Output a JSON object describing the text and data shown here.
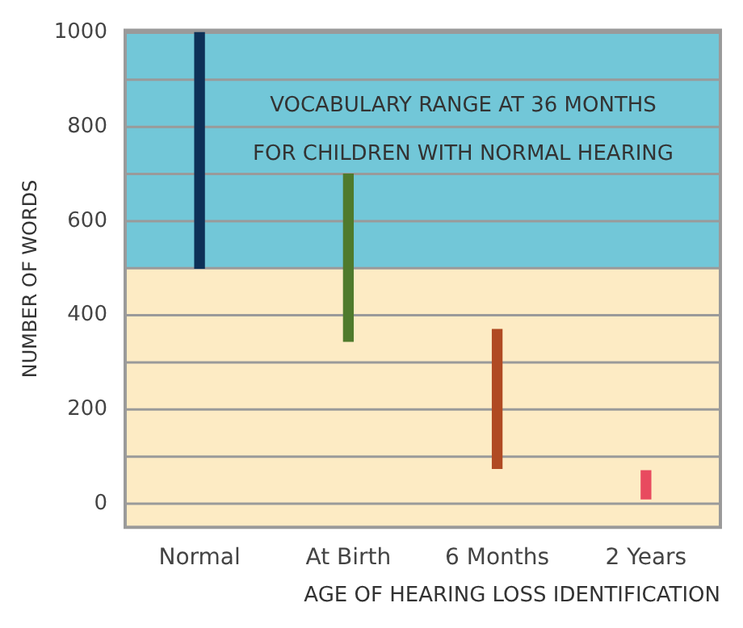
{
  "chart_data": {
    "type": "bar",
    "categories": [
      "Normal",
      "At Birth",
      "6 Months",
      "2 Years"
    ],
    "base": [
      500,
      345,
      75,
      10
    ],
    "values": [
      500,
      355,
      295,
      60
    ],
    "colors": [
      "#0d3057",
      "#4f7a2c",
      "#b04a22",
      "#e84a5f"
    ],
    "ylabel": "NUMBER OF WORDS",
    "xlabel": "AGE OF HEARING LOSS IDENTIFICATION",
    "annotations": [
      "VOCABULARY RANGE AT 36 MONTHS",
      "FOR CHILDREN WITH NORMAL HEARING"
    ],
    "ylim": [
      -50,
      1005
    ],
    "yticks": [
      0,
      {
        "value": 100,
        "label": null
      },
      200,
      {
        "value": 300,
        "label": null
      },
      400,
      {
        "value": 500,
        "label": null
      },
      600,
      {
        "value": 700,
        "label": null
      },
      800,
      {
        "value": 900,
        "label": null
      },
      1000
    ],
    "bands": [
      {
        "axis": "y",
        "from": 500,
        "to": 1005,
        "color": "#72c7d8"
      },
      {
        "axis": "y",
        "from": -50,
        "to": 500,
        "color": "#fdebc4"
      }
    ],
    "grid": "y",
    "legend": false
  }
}
